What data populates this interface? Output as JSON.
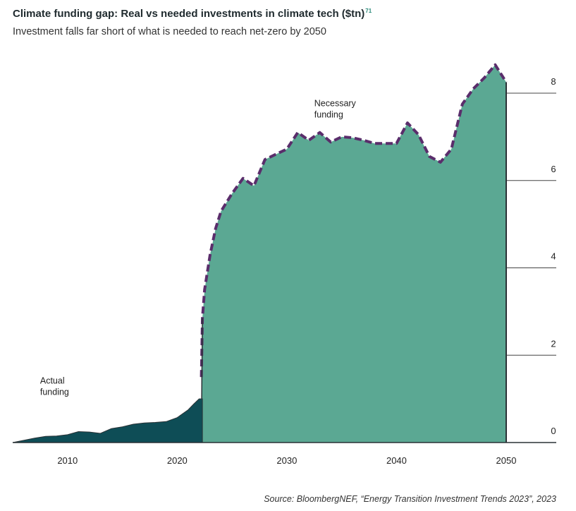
{
  "header": {
    "title": "Climate funding gap: Real vs needed investments in climate tech ($tn)",
    "title_ref": "71",
    "subtitle": "Investment falls far short of what is needed to reach net-zero by 2050"
  },
  "source": "Source: BloombergNEF, “Energy Transition Investment Trends 2023”, 2023",
  "colors": {
    "actual_fill": "#0e4d56",
    "necessary_fill": "#5ba893",
    "necessary_outline": "#5a2d6b",
    "axis": "#2a3236",
    "grid": "#444444"
  },
  "chart_data": {
    "type": "area",
    "xlim": [
      2005,
      2050
    ],
    "ylim": [
      0,
      8
    ],
    "x_ticks": [
      "2010",
      "2020",
      "2030",
      "2040",
      "2050"
    ],
    "y_ticks": [
      "0",
      "2",
      "4",
      "6",
      "8"
    ],
    "y_axis_position": "right",
    "grid": "horizontal, right of 2050 only",
    "annotations": [
      {
        "text_lines": [
          "Necessary",
          "funding"
        ],
        "x": 2032.5,
        "y": 7.7
      },
      {
        "text_lines": [
          "Actual",
          "funding"
        ],
        "x": 2007.5,
        "y": 1.35
      }
    ],
    "series": [
      {
        "name": "Actual funding",
        "x": [
          2005,
          2006,
          2007,
          2008,
          2009,
          2010,
          2011,
          2012,
          2013,
          2014,
          2015,
          2016,
          2017,
          2018,
          2019,
          2020,
          2021,
          2021.5,
          2022,
          2022.3
        ],
        "values": [
          0.0,
          0.05,
          0.1,
          0.14,
          0.15,
          0.18,
          0.25,
          0.24,
          0.21,
          0.32,
          0.36,
          0.42,
          0.45,
          0.46,
          0.48,
          0.57,
          0.75,
          0.88,
          1.0,
          1.0
        ]
      },
      {
        "name": "Necessary funding",
        "x": [
          2022.2,
          2022.3,
          2022.5,
          2023,
          2023.5,
          2024,
          2025,
          2026,
          2027,
          2028,
          2029,
          2030,
          2031,
          2032,
          2033,
          2034,
          2035,
          2036,
          2037,
          2038,
          2039,
          2040,
          2041,
          2042,
          2043,
          2044,
          2045,
          2046,
          2047,
          2048,
          2049,
          2050
        ],
        "values": [
          1.5,
          2.85,
          3.5,
          4.3,
          4.9,
          5.3,
          5.7,
          6.05,
          5.88,
          6.48,
          6.6,
          6.72,
          7.1,
          6.92,
          7.1,
          6.88,
          7.0,
          6.98,
          6.92,
          6.85,
          6.85,
          6.85,
          7.32,
          7.05,
          6.55,
          6.42,
          6.72,
          7.75,
          8.1,
          8.35,
          8.65,
          8.25
        ]
      }
    ]
  }
}
